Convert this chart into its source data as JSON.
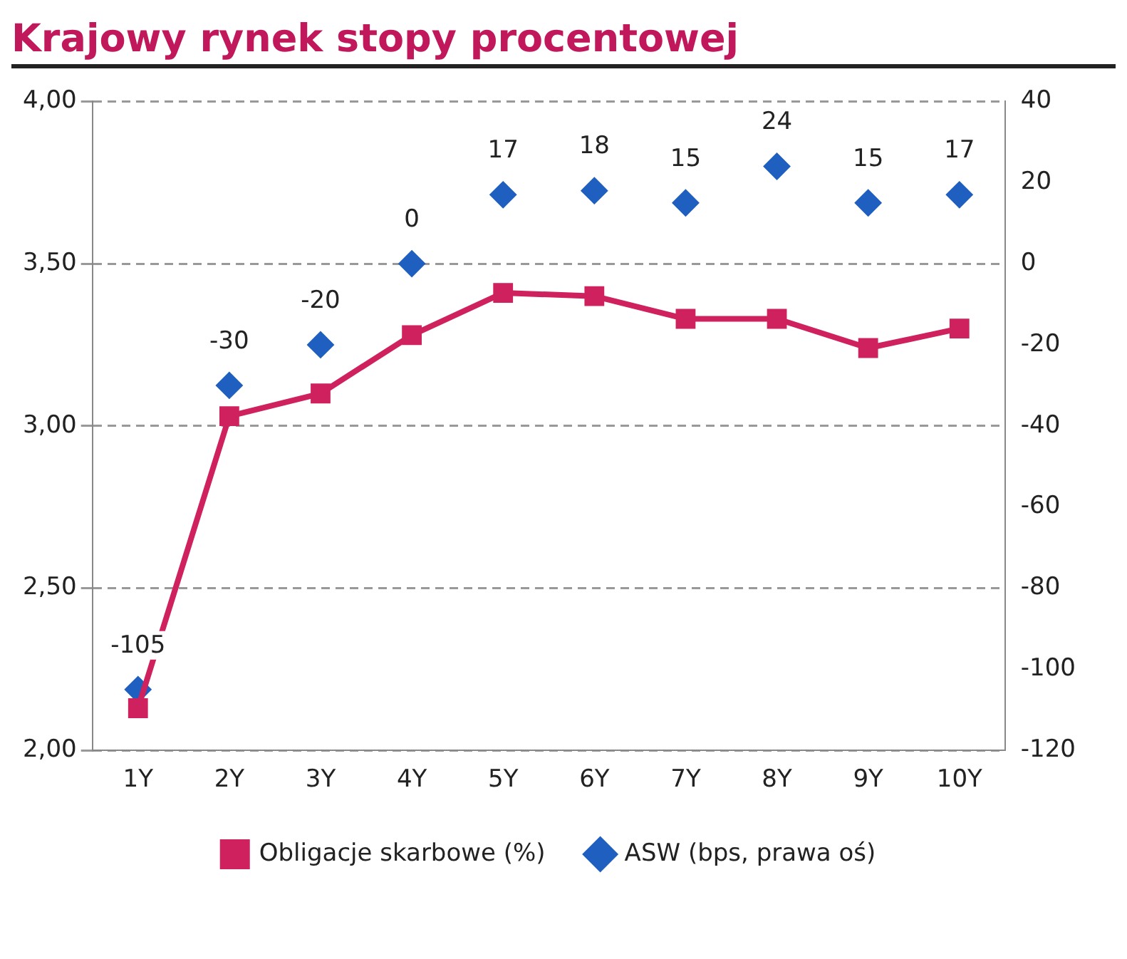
{
  "chart_data": {
    "type": "line",
    "title": "Krajowy rynek stopy procentowej",
    "categories": [
      "1Y",
      "2Y",
      "3Y",
      "4Y",
      "5Y",
      "6Y",
      "7Y",
      "8Y",
      "9Y",
      "10Y"
    ],
    "series": [
      {
        "name": "Obligacje skarbowe (%)",
        "color": "#d0215f",
        "marker": "square",
        "values": [
          2.13,
          3.03,
          3.1,
          3.28,
          3.41,
          3.4,
          3.33,
          3.33,
          3.24,
          3.3
        ]
      },
      {
        "name": "ASW (bps, prawa oś)",
        "type": "scatter",
        "axis": "y2",
        "color": "#1f5fbf",
        "marker": "diamond",
        "values": [
          -105,
          -30,
          -20,
          0,
          17,
          18,
          15,
          24,
          15,
          17
        ],
        "value_labels": [
          "-105",
          "-30",
          "-20",
          "0",
          "17",
          "18",
          "15",
          "24",
          "15",
          "17"
        ]
      }
    ],
    "ylim": [
      2,
      4
    ],
    "yticks": [
      {
        "value": 2,
        "label": "2,00"
      },
      {
        "value": 2.5,
        "label": "2,50"
      },
      {
        "value": 3,
        "label": "3,00"
      },
      {
        "value": 3.5,
        "label": "3,50"
      },
      {
        "value": 4,
        "label": "4,00"
      }
    ],
    "y2lim": [
      -120,
      40
    ],
    "y2ticks": [
      -120,
      -100,
      -80,
      -60,
      -40,
      -20,
      0,
      20,
      40
    ],
    "grid": "y",
    "legend": "bottom"
  }
}
